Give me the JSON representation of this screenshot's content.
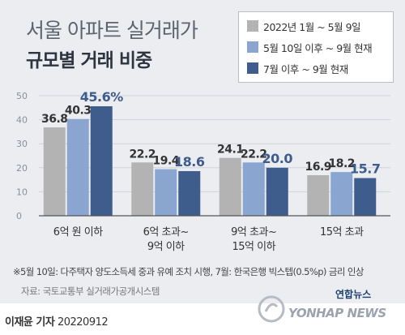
{
  "title": {
    "line1": "서울 아파트 실거래가",
    "line2": "규모별 거래 비중"
  },
  "legend": [
    {
      "label": "2022년 1월 ~ 5월 9일",
      "color": "#b3b3b3"
    },
    {
      "label": "5월 10일 이후 ~ 9월 현재",
      "color": "#8aa6d0"
    },
    {
      "label": "7월 이후 ~ 9월 현재",
      "color": "#3e5c8c"
    }
  ],
  "chart_data": {
    "type": "bar",
    "categories": [
      [
        "6억 원 이하"
      ],
      [
        "6억 초과~",
        "9억 이하"
      ],
      [
        "9억 초과~",
        "15억 이하"
      ],
      [
        "15억 초과"
      ]
    ],
    "series": [
      {
        "name": "2022년 1월 ~ 5월 9일",
        "values": [
          36.8,
          22.2,
          24.1,
          16.9
        ],
        "labels": [
          "36.8",
          "22.2",
          "24.1",
          "16.9"
        ],
        "color": "#b3b3b3"
      },
      {
        "name": "5월 10일 이후 ~ 9월 현재",
        "values": [
          40.3,
          19.4,
          22.2,
          18.2
        ],
        "labels": [
          "40.3",
          "19.4",
          "22.2",
          "18.2"
        ],
        "color": "#8aa6d0"
      },
      {
        "name": "7월 이후 ~ 9월 현재",
        "values": [
          45.6,
          18.6,
          20.0,
          15.7
        ],
        "labels": [
          "45.6%",
          "18.6",
          "20.0",
          "15.7"
        ],
        "color": "#3e5c8c"
      }
    ],
    "ylim": [
      0,
      50
    ],
    "yticks": [
      0,
      10,
      20,
      30,
      40,
      50
    ],
    "grid": true,
    "legend_position": "top-right"
  },
  "note": "※5월 10일: 다주택자 양도소득세 중과 유예 조치 시행, 7월: 한국은행 빅스텝(0.5%p) 금리 인상",
  "source": "자료: 국토교통부 실거래가공개시스템",
  "credit": {
    "name": "이재윤 기자",
    "date": "20220912"
  },
  "brand": {
    "korean": "연합뉴스",
    "english": "YONHAP NEWS"
  }
}
